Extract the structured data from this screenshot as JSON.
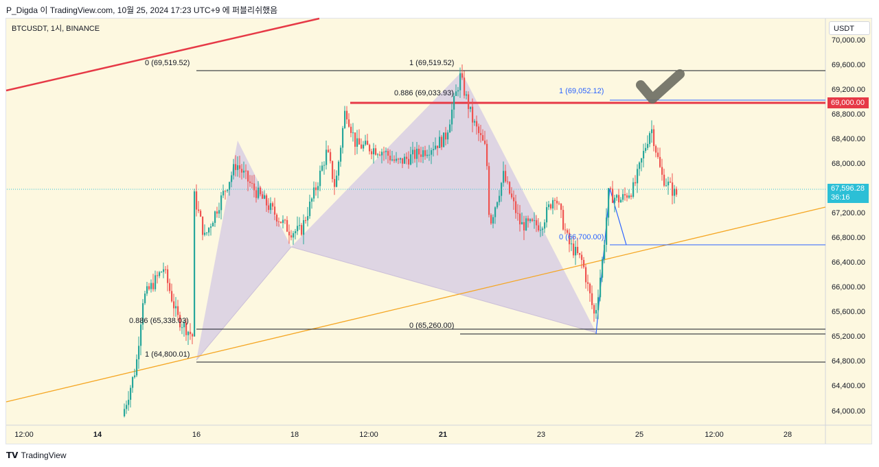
{
  "header": {
    "text": "P_Digda 이 TradingView.com, 10월 25, 2024 17:23 UTC+9 에 퍼블리쉬했음"
  },
  "symbol": {
    "text": "BTCUSDT, 1시, BINANCE"
  },
  "price_scale": {
    "currency": "USDT",
    "ticks": [
      "70,000.00",
      "69,600.00",
      "69,200.00",
      "69,000.00",
      "68,800.00",
      "68,400.00",
      "68,000.00",
      "67,596.28",
      "67,200.00",
      "66,800.00",
      "66,400.00",
      "66,000.00",
      "65,600.00",
      "65,200.00",
      "64,800.00",
      "64,400.00",
      "64,000.00"
    ],
    "highlight_price": "69,000.00",
    "current_price": "67,596.28",
    "countdown": "36:16"
  },
  "time_scale": {
    "ticks": [
      "12:00",
      "14",
      "16",
      "18",
      "12:00",
      "21",
      "23",
      "25",
      "12:00",
      "28"
    ]
  },
  "levels": {
    "x_zero_top": "0 (69,519.52)",
    "a_one_top": "1 (69,519.52)",
    "b_0886_top": "0.886 (69,033.93)",
    "d_one_blue": "1 (69,052.12)",
    "d_zero_blue": "0 (66,700.00)",
    "x_0886_bottom": "0.886 (65,338.03)",
    "c_zero_bottom": "0 (65,260.00)",
    "x_one_bottom": "1 (64,800.01)"
  },
  "colors": {
    "background": "#fdf8e0",
    "up": "#26a69a",
    "down": "#ef5350",
    "pattern_fill": "#d8cfe3",
    "trend_red": "#e63946",
    "trend_orange": "#f5a623",
    "fib_blue": "#2962ff",
    "checkmark": "#6b6b62"
  },
  "icons": {
    "checkmark": "checkmark-icon",
    "logo": "tradingview-logo-icon"
  },
  "footer": {
    "brand": "TradingView"
  }
}
